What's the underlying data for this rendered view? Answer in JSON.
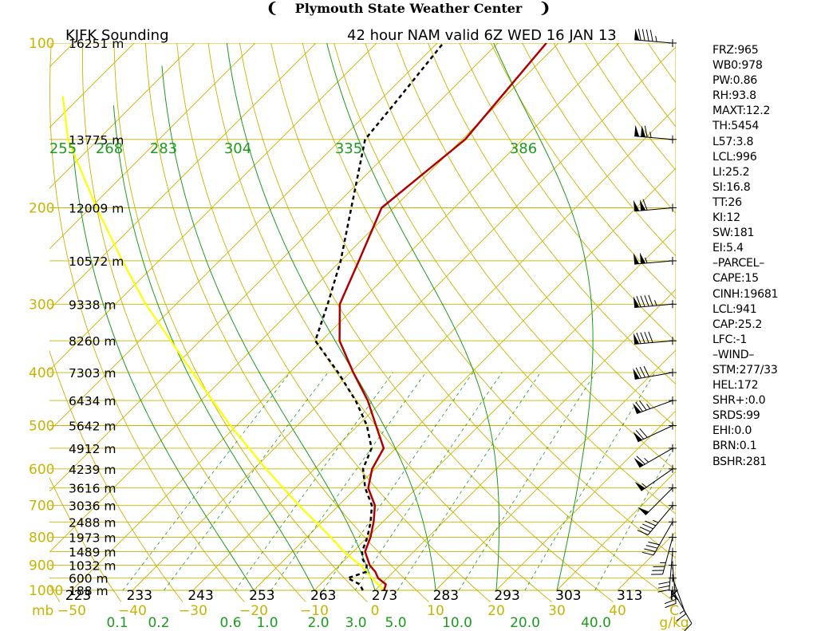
{
  "header": {
    "title": "Plymouth State Weather Center"
  },
  "chart_data": {
    "type": "skew-t",
    "station_label": "KJFK Sounding",
    "model_label": "42 hour NAM valid 6Z WED 16 JAN 13",
    "pressure_axis": {
      "unit": "mb",
      "ticks": [
        100,
        200,
        300,
        400,
        500,
        600,
        700,
        800,
        900,
        1000
      ],
      "range": [
        100,
        1000
      ]
    },
    "height_labels": [
      {
        "p": 100,
        "label": "16251 m"
      },
      {
        "p": 150,
        "label": "13775 m"
      },
      {
        "p": 200,
        "label": "12009 m"
      },
      {
        "p": 250,
        "label": "10572 m"
      },
      {
        "p": 300,
        "label": "9338 m"
      },
      {
        "p": 350,
        "label": "8260 m"
      },
      {
        "p": 400,
        "label": "7303 m"
      },
      {
        "p": 450,
        "label": "6434 m"
      },
      {
        "p": 500,
        "label": "5642 m"
      },
      {
        "p": 550,
        "label": "4912 m"
      },
      {
        "p": 600,
        "label": "4239 m"
      },
      {
        "p": 650,
        "label": "3616 m"
      },
      {
        "p": 700,
        "label": "3036 m"
      },
      {
        "p": 750,
        "label": "2488 m"
      },
      {
        "p": 800,
        "label": "1973 m"
      },
      {
        "p": 850,
        "label": "1489 m"
      },
      {
        "p": 900,
        "label": "1032 m"
      },
      {
        "p": 950,
        "label": "600 m"
      },
      {
        "p": 1000,
        "label": "188 m"
      }
    ],
    "temperature_axis": {
      "unit": "C",
      "ticks": [
        -50,
        -40,
        -30,
        -20,
        -10,
        0,
        10,
        20,
        30,
        40
      ]
    },
    "kelvin_labels": {
      "unit": "K",
      "ticks": [
        223,
        233,
        243,
        253,
        263,
        273,
        283,
        293,
        303,
        313
      ]
    },
    "mixing_ratio_labels": {
      "unit": "g/kg",
      "ticks": [
        0.1,
        0.2,
        0.6,
        1.0,
        2.0,
        3.0,
        5.0,
        10.0,
        20.0,
        40.0
      ]
    },
    "adiabat_labels": [
      255,
      268,
      283,
      304,
      335,
      386
    ],
    "temperature_profile": [
      {
        "p": 1000,
        "t": 1.5
      },
      {
        "p": 975,
        "t": 0.8
      },
      {
        "p": 950,
        "t": -1.5
      },
      {
        "p": 925,
        "t": -3.0
      },
      {
        "p": 900,
        "t": -5.0
      },
      {
        "p": 850,
        "t": -8.0
      },
      {
        "p": 800,
        "t": -9.5
      },
      {
        "p": 750,
        "t": -11.5
      },
      {
        "p": 700,
        "t": -14.0
      },
      {
        "p": 650,
        "t": -18.0
      },
      {
        "p": 600,
        "t": -20.5
      },
      {
        "p": 550,
        "t": -22.0
      },
      {
        "p": 500,
        "t": -27.0
      },
      {
        "p": 450,
        "t": -32.5
      },
      {
        "p": 400,
        "t": -39.5
      },
      {
        "p": 350,
        "t": -47.0
      },
      {
        "p": 300,
        "t": -53.0
      },
      {
        "p": 250,
        "t": -57.0
      },
      {
        "p": 200,
        "t": -62.0
      },
      {
        "p": 150,
        "t": -59.5
      },
      {
        "p": 100,
        "t": -62.0
      }
    ],
    "dewpoint_profile": [
      {
        "p": 1000,
        "t": -2.0
      },
      {
        "p": 975,
        "t": -3.5
      },
      {
        "p": 950,
        "t": -6.5
      },
      {
        "p": 925,
        "t": -4.5
      },
      {
        "p": 900,
        "t": -5.5
      },
      {
        "p": 880,
        "t": -7.0
      },
      {
        "p": 850,
        "t": -8.5
      },
      {
        "p": 800,
        "t": -10.0
      },
      {
        "p": 750,
        "t": -12.0
      },
      {
        "p": 700,
        "t": -14.5
      },
      {
        "p": 650,
        "t": -18.5
      },
      {
        "p": 600,
        "t": -22.0
      },
      {
        "p": 550,
        "t": -24.0
      },
      {
        "p": 500,
        "t": -28.5
      },
      {
        "p": 450,
        "t": -34.5
      },
      {
        "p": 400,
        "t": -42.0
      },
      {
        "p": 350,
        "t": -51.0
      },
      {
        "p": 300,
        "t": -55.0
      },
      {
        "p": 250,
        "t": -60.0
      },
      {
        "p": 200,
        "t": -67.0
      },
      {
        "p": 150,
        "t": -76.0
      },
      {
        "p": 130,
        "t": -77.0
      },
      {
        "p": 100,
        "t": -79.0
      }
    ],
    "parcel_path": [
      {
        "p": 1000,
        "t": 1.5
      },
      {
        "p": 950,
        "t": -2.5
      },
      {
        "p": 900,
        "t": -6.5
      },
      {
        "p": 850,
        "t": -11.5
      },
      {
        "p": 800,
        "t": -16.0
      },
      {
        "p": 700,
        "t": -26.5
      },
      {
        "p": 600,
        "t": -38.0
      },
      {
        "p": 500,
        "t": -51.0
      },
      {
        "p": 400,
        "t": -66.0
      },
      {
        "p": 300,
        "t": -85.0
      },
      {
        "p": 250,
        "t": -96.0
      },
      {
        "p": 200,
        "t": -109.0
      },
      {
        "p": 150,
        "t": -125.0
      },
      {
        "p": 125,
        "t": -133.0
      }
    ],
    "wind_profile": [
      {
        "p": 100,
        "dir": 275,
        "spd": 95
      },
      {
        "p": 150,
        "dir": 275,
        "spd": 115
      },
      {
        "p": 200,
        "dir": 265,
        "spd": 110
      },
      {
        "p": 250,
        "dir": 265,
        "spd": 105
      },
      {
        "p": 300,
        "dir": 265,
        "spd": 95
      },
      {
        "p": 350,
        "dir": 265,
        "spd": 90
      },
      {
        "p": 400,
        "dir": 260,
        "spd": 80
      },
      {
        "p": 450,
        "dir": 250,
        "spd": 75
      },
      {
        "p": 500,
        "dir": 245,
        "spd": 70
      },
      {
        "p": 550,
        "dir": 240,
        "spd": 65
      },
      {
        "p": 600,
        "dir": 235,
        "spd": 55
      },
      {
        "p": 650,
        "dir": 225,
        "spd": 50
      },
      {
        "p": 700,
        "dir": 220,
        "spd": 45
      },
      {
        "p": 750,
        "dir": 210,
        "spd": 40
      },
      {
        "p": 800,
        "dir": 195,
        "spd": 35
      },
      {
        "p": 850,
        "dir": 185,
        "spd": 30
      },
      {
        "p": 900,
        "dir": 175,
        "spd": 25
      },
      {
        "p": 950,
        "dir": 160,
        "spd": 15
      },
      {
        "p": 1000,
        "dir": 150,
        "spd": 10
      }
    ],
    "colors": {
      "grid": "#c8b400",
      "adiabat": "#1e9a1e",
      "temperature": "#b00000",
      "dewpoint": "#000000",
      "parcel": "#ffff00",
      "text": "#000000"
    }
  },
  "indices": [
    "FRZ:965",
    "WB0:978",
    "PW:0.86",
    "RH:93.8",
    "MAXT:12.2",
    "TH:5454",
    "L57:3.8",
    "LCL:996",
    "LI:25.2",
    "SI:16.8",
    "TT:26",
    "KI:12",
    "SW:181",
    "EI:5.4",
    "–PARCEL–",
    "CAPE:15",
    "CINH:19681",
    "LCL:941",
    "CAP:25.2",
    "LFC:-1",
    "–WIND–",
    "STM:277/33",
    "HEL:172",
    "SHR+:0.0",
    "SRDS:99",
    "EHI:0.0",
    "BRN:0.1",
    "BSHR:281"
  ]
}
